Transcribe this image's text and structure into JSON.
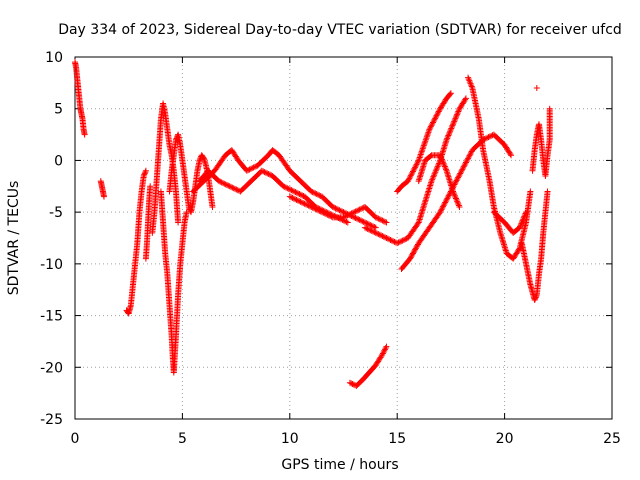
{
  "chart_data": {
    "type": "scatter",
    "title": "Day 334 of 2023, Sidereal Day-to-day VTEC variation (SDTVAR) for receiver ufcd",
    "xlabel": "GPS time / hours",
    "ylabel": "SDTVAR / TECUs",
    "xlim": [
      0,
      25
    ],
    "ylim": [
      -25,
      10
    ],
    "xticks": [
      0,
      5,
      10,
      15,
      20,
      25
    ],
    "yticks": [
      10,
      5,
      0,
      -5,
      -10,
      -15,
      -20,
      -25
    ],
    "grid": true,
    "marker": "+",
    "color": "#ff0000",
    "series": [
      {
        "name": "s1",
        "points": [
          [
            0.0,
            9.5
          ],
          [
            0.05,
            9.0
          ],
          [
            0.1,
            8.0
          ],
          [
            0.15,
            7.0
          ],
          [
            0.2,
            6.0
          ],
          [
            0.25,
            5.0
          ],
          [
            0.3,
            4.5
          ],
          [
            0.35,
            4.0
          ],
          [
            0.4,
            3.0
          ],
          [
            0.45,
            2.5
          ]
        ]
      },
      {
        "name": "s2",
        "points": [
          [
            1.2,
            -2.0
          ],
          [
            1.25,
            -2.5
          ],
          [
            1.3,
            -3.0
          ],
          [
            1.35,
            -3.5
          ]
        ]
      },
      {
        "name": "s3",
        "points": [
          [
            2.4,
            -14.5
          ],
          [
            2.5,
            -14.8
          ],
          [
            2.6,
            -14.0
          ],
          [
            2.7,
            -12.0
          ],
          [
            2.8,
            -10.0
          ],
          [
            2.9,
            -8.0
          ],
          [
            3.0,
            -5.0
          ],
          [
            3.1,
            -3.0
          ],
          [
            3.2,
            -1.5
          ],
          [
            3.3,
            -1.0
          ]
        ]
      },
      {
        "name": "s4",
        "points": [
          [
            3.3,
            -9.5
          ],
          [
            3.35,
            -8.0
          ],
          [
            3.4,
            -6.0
          ],
          [
            3.45,
            -4.0
          ],
          [
            3.5,
            -2.5
          ]
        ]
      },
      {
        "name": "s5",
        "points": [
          [
            3.6,
            -7.0
          ],
          [
            3.7,
            -5.0
          ],
          [
            3.8,
            -2.0
          ],
          [
            3.9,
            1.0
          ],
          [
            4.0,
            4.0
          ],
          [
            4.1,
            5.5
          ],
          [
            4.2,
            4.5
          ],
          [
            4.3,
            3.0
          ],
          [
            4.4,
            1.5
          ],
          [
            4.5,
            0.5
          ],
          [
            4.6,
            -1.0
          ],
          [
            4.7,
            -3.0
          ],
          [
            4.8,
            -6.0
          ]
        ]
      },
      {
        "name": "s6",
        "points": [
          [
            4.0,
            -3.0
          ],
          [
            4.1,
            -6.0
          ],
          [
            4.2,
            -9.0
          ],
          [
            4.3,
            -11.0
          ],
          [
            4.4,
            -14.0
          ],
          [
            4.5,
            -17.0
          ],
          [
            4.55,
            -19.0
          ],
          [
            4.6,
            -20.5
          ],
          [
            4.7,
            -17.0
          ],
          [
            4.8,
            -13.0
          ],
          [
            4.9,
            -10.0
          ],
          [
            5.0,
            -8.0
          ],
          [
            5.1,
            -6.0
          ],
          [
            5.2,
            -5.0
          ]
        ]
      },
      {
        "name": "s7",
        "points": [
          [
            4.4,
            -3.0
          ],
          [
            4.5,
            -1.0
          ],
          [
            4.6,
            0.5
          ],
          [
            4.7,
            2.0
          ],
          [
            4.8,
            2.5
          ],
          [
            4.9,
            1.5
          ],
          [
            5.0,
            0.0
          ],
          [
            5.1,
            -1.5
          ],
          [
            5.2,
            -3.0
          ],
          [
            5.3,
            -4.5
          ],
          [
            5.4,
            -5.0
          ],
          [
            5.5,
            -4.0
          ],
          [
            5.6,
            -2.5
          ],
          [
            5.7,
            -1.0
          ],
          [
            5.8,
            0.0
          ],
          [
            5.9,
            0.5
          ],
          [
            6.0,
            0.2
          ],
          [
            6.1,
            -0.5
          ],
          [
            6.2,
            -1.5
          ],
          [
            6.3,
            -3.0
          ],
          [
            6.4,
            -4.5
          ]
        ]
      },
      {
        "name": "s8",
        "points": [
          [
            5.5,
            -3.0
          ],
          [
            6.0,
            -2.0
          ],
          [
            6.5,
            -1.0
          ],
          [
            7.0,
            0.5
          ],
          [
            7.3,
            1.0
          ],
          [
            7.6,
            0.0
          ],
          [
            8.0,
            -1.0
          ],
          [
            8.5,
            -0.5
          ],
          [
            9.0,
            0.5
          ],
          [
            9.2,
            1.0
          ],
          [
            9.5,
            0.5
          ],
          [
            10.0,
            -1.0
          ],
          [
            10.5,
            -2.0
          ],
          [
            11.0,
            -3.0
          ],
          [
            11.5,
            -3.5
          ],
          [
            12.0,
            -4.5
          ],
          [
            12.5,
            -5.0
          ],
          [
            13.0,
            -5.5
          ],
          [
            13.5,
            -6.0
          ],
          [
            14.0,
            -6.5
          ]
        ]
      },
      {
        "name": "s9",
        "points": [
          [
            5.8,
            -2.0
          ],
          [
            6.2,
            -1.0
          ],
          [
            6.7,
            -2.0
          ],
          [
            7.2,
            -2.5
          ],
          [
            7.7,
            -3.0
          ],
          [
            8.2,
            -2.0
          ],
          [
            8.7,
            -1.0
          ],
          [
            9.2,
            -1.5
          ],
          [
            9.7,
            -2.5
          ],
          [
            10.2,
            -3.0
          ],
          [
            10.7,
            -3.5
          ],
          [
            11.2,
            -4.5
          ],
          [
            11.7,
            -5.0
          ],
          [
            12.2,
            -5.5
          ],
          [
            12.7,
            -6.0
          ]
        ]
      },
      {
        "name": "s10",
        "points": [
          [
            10.0,
            -3.5
          ],
          [
            10.5,
            -4.0
          ],
          [
            11.0,
            -4.5
          ],
          [
            11.5,
            -5.0
          ],
          [
            12.0,
            -5.5
          ],
          [
            12.5,
            -5.5
          ],
          [
            13.0,
            -5.0
          ],
          [
            13.5,
            -4.5
          ],
          [
            14.0,
            -5.5
          ],
          [
            14.5,
            -6.0
          ]
        ]
      },
      {
        "name": "s11",
        "points": [
          [
            13.5,
            -6.5
          ],
          [
            14.0,
            -7.0
          ],
          [
            14.5,
            -7.5
          ],
          [
            15.0,
            -8.0
          ],
          [
            15.5,
            -7.5
          ],
          [
            16.0,
            -6.0
          ],
          [
            16.3,
            -4.0
          ],
          [
            16.6,
            -2.0
          ],
          [
            17.0,
            0.0
          ],
          [
            17.3,
            2.0
          ],
          [
            17.6,
            3.5
          ],
          [
            17.9,
            5.0
          ],
          [
            18.2,
            6.0
          ]
        ]
      },
      {
        "name": "s12",
        "points": [
          [
            15.0,
            -3.0
          ],
          [
            15.2,
            -2.5
          ],
          [
            15.5,
            -2.0
          ],
          [
            16.0,
            0.0
          ],
          [
            16.5,
            3.0
          ],
          [
            17.0,
            5.0
          ],
          [
            17.3,
            6.0
          ],
          [
            17.5,
            6.5
          ]
        ]
      },
      {
        "name": "s13",
        "points": [
          [
            15.2,
            -10.5
          ],
          [
            15.6,
            -9.5
          ],
          [
            16.0,
            -8.0
          ],
          [
            16.5,
            -6.5
          ],
          [
            17.0,
            -5.0
          ],
          [
            17.5,
            -3.0
          ],
          [
            18.0,
            -1.0
          ],
          [
            18.5,
            1.0
          ],
          [
            19.0,
            2.0
          ],
          [
            19.5,
            2.5
          ],
          [
            20.0,
            1.5
          ],
          [
            20.3,
            0.5
          ]
        ]
      },
      {
        "name": "s14",
        "points": [
          [
            16.0,
            -2.0
          ],
          [
            16.3,
            0.0
          ],
          [
            16.6,
            0.5
          ],
          [
            17.0,
            0.5
          ],
          [
            17.3,
            -1.0
          ],
          [
            17.6,
            -3.0
          ],
          [
            17.9,
            -4.5
          ]
        ]
      },
      {
        "name": "s15",
        "points": [
          [
            18.3,
            8.0
          ],
          [
            18.5,
            7.0
          ],
          [
            18.8,
            4.0
          ],
          [
            19.0,
            1.0
          ],
          [
            19.3,
            -2.0
          ],
          [
            19.5,
            -4.5
          ],
          [
            19.8,
            -7.0
          ],
          [
            20.1,
            -9.0
          ],
          [
            20.4,
            -9.5
          ],
          [
            20.7,
            -8.5
          ],
          [
            21.0,
            -6.0
          ],
          [
            21.2,
            -3.0
          ]
        ]
      },
      {
        "name": "s16",
        "points": [
          [
            19.5,
            -5.0
          ],
          [
            20.0,
            -6.0
          ],
          [
            20.4,
            -7.0
          ],
          [
            20.7,
            -6.5
          ],
          [
            21.0,
            -5.0
          ]
        ]
      },
      {
        "name": "s17",
        "points": [
          [
            20.8,
            -8.0
          ],
          [
            21.0,
            -10.0
          ],
          [
            21.2,
            -12.0
          ],
          [
            21.4,
            -13.5
          ],
          [
            21.5,
            -13.0
          ],
          [
            21.6,
            -11.0
          ],
          [
            21.7,
            -9.5
          ],
          [
            21.8,
            -7.0
          ],
          [
            21.9,
            -5.0
          ],
          [
            22.0,
            -3.0
          ]
        ]
      },
      {
        "name": "s18",
        "points": [
          [
            21.3,
            -1.0
          ],
          [
            21.4,
            1.0
          ],
          [
            21.5,
            2.5
          ],
          [
            21.6,
            3.5
          ],
          [
            21.7,
            2.0
          ],
          [
            21.8,
            0.0
          ],
          [
            21.9,
            -1.5
          ],
          [
            22.0,
            0.5
          ],
          [
            22.1,
            2.0
          ],
          [
            22.1,
            5.0
          ]
        ]
      },
      {
        "name": "s19",
        "points": [
          [
            21.5,
            7.0
          ]
        ]
      },
      {
        "name": "s20",
        "points": [
          [
            12.8,
            -21.5
          ],
          [
            13.1,
            -21.8
          ],
          [
            13.4,
            -21.2
          ],
          [
            13.7,
            -20.5
          ],
          [
            14.0,
            -19.8
          ],
          [
            14.3,
            -18.8
          ],
          [
            14.5,
            -18.0
          ]
        ]
      }
    ]
  }
}
